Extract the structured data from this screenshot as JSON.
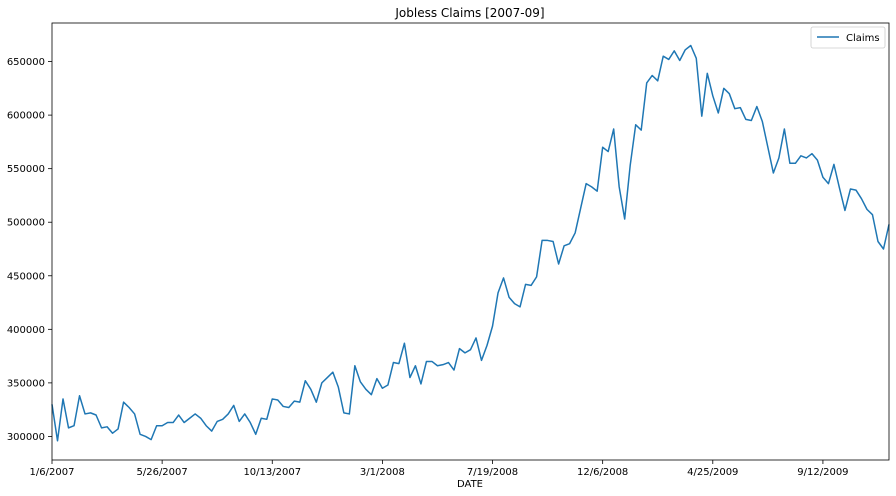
{
  "chart_data": {
    "type": "line",
    "title": "Jobless Claims [2007-09]",
    "xlabel": "DATE",
    "ylabel": "",
    "legend_position": "top-right",
    "grid": false,
    "ylim": [
      278000,
      686000
    ],
    "y_ticks": [
      300000,
      350000,
      400000,
      450000,
      500000,
      550000,
      600000,
      650000
    ],
    "x_ticks": [
      {
        "label": "1/6/2007",
        "index": 0
      },
      {
        "label": "5/26/2007",
        "index": 20
      },
      {
        "label": "10/13/2007",
        "index": 40
      },
      {
        "label": "3/1/2008",
        "index": 60
      },
      {
        "label": "7/19/2008",
        "index": 80
      },
      {
        "label": "12/6/2008",
        "index": 100
      },
      {
        "label": "4/25/2009",
        "index": 120
      },
      {
        "label": "9/12/2009",
        "index": 140
      }
    ],
    "x_start": "1/6/2007",
    "x_frequency": "weekly",
    "colors": {
      "series": "#1f77b4"
    },
    "series": [
      {
        "name": "Claims",
        "values": [
          330000,
          296000,
          335000,
          308000,
          310000,
          338000,
          321000,
          322000,
          320000,
          308000,
          309000,
          303000,
          307000,
          332000,
          327000,
          321000,
          302000,
          300000,
          297000,
          310000,
          310000,
          313000,
          313000,
          320000,
          313000,
          317000,
          321000,
          317000,
          310000,
          305000,
          314000,
          316000,
          321000,
          329000,
          314000,
          321000,
          313000,
          302000,
          317000,
          316000,
          335000,
          334000,
          328000,
          327000,
          333000,
          332000,
          352000,
          344000,
          332000,
          350000,
          355000,
          360000,
          346000,
          322000,
          321000,
          366000,
          351000,
          344000,
          339000,
          354000,
          345000,
          348000,
          369000,
          368000,
          387000,
          355000,
          366000,
          349000,
          370000,
          370000,
          366000,
          367000,
          369000,
          362000,
          382000,
          378000,
          381000,
          392000,
          371000,
          385000,
          403000,
          434000,
          448000,
          430000,
          424000,
          421000,
          442000,
          441000,
          449000,
          483000,
          483000,
          482000,
          461000,
          478000,
          480000,
          490000,
          513000,
          536000,
          533000,
          529000,
          570000,
          566000,
          587000,
          533000,
          503000,
          553000,
          591000,
          586000,
          630000,
          637000,
          632000,
          655000,
          652000,
          660000,
          651000,
          661000,
          665000,
          653000,
          599000,
          639000,
          618000,
          602000,
          625000,
          620000,
          606000,
          607000,
          596000,
          595000,
          608000,
          594000,
          570000,
          546000,
          560000,
          587000,
          555000,
          555000,
          562000,
          560000,
          564000,
          558000,
          542000,
          536000,
          554000,
          532000,
          511000,
          531000,
          530000,
          522000,
          512000,
          507000,
          482000,
          475000,
          498000
        ]
      }
    ]
  }
}
